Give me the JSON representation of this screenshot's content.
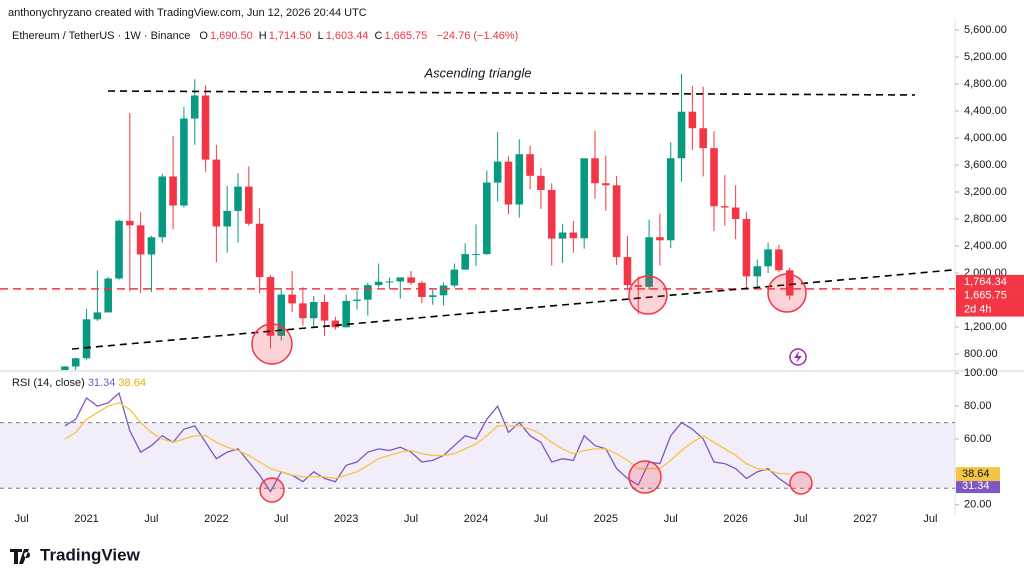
{
  "header": "anthonychryzano created with TradingView.com, Jun 12, 2026 20:44 UTC",
  "brand": "TradingView",
  "chart_data": {
    "type": "candlestick",
    "symbol": "Ethereum / TetherUS · 1W · Binance",
    "ohlc": [
      {
        "key": "O",
        "value": 1690.5,
        "label": "1,690.50"
      },
      {
        "key": "H",
        "value": 1714.5,
        "label": "1,714.50"
      },
      {
        "key": "L",
        "value": 1603.44,
        "label": "1,603.44"
      },
      {
        "key": "C",
        "value": 1665.75,
        "label": "1,665.75"
      }
    ],
    "change": "−24.76 (−1.46%)",
    "annotation": "Ascending triangle",
    "up_color": "#089981",
    "down_color": "#f23645",
    "x": [
      "2020-11",
      "2020-12",
      "2021-01",
      "2021-02",
      "2021-03",
      "2021-04",
      "2021-05",
      "2021-06",
      "2021-07",
      "2021-08",
      "2021-09",
      "2021-10",
      "2021-11",
      "2021-12",
      "2022-01",
      "2022-02",
      "2022-03",
      "2022-04",
      "2022-05",
      "2022-06",
      "2022-07",
      "2022-08",
      "2022-09",
      "2022-10",
      "2022-11",
      "2022-12",
      "2023-01",
      "2023-02",
      "2023-03",
      "2023-04",
      "2023-05",
      "2023-06",
      "2023-07",
      "2023-08",
      "2023-09",
      "2023-10",
      "2023-11",
      "2023-12",
      "2024-01",
      "2024-02",
      "2024-03",
      "2024-04",
      "2024-05",
      "2024-06",
      "2024-07",
      "2024-08",
      "2024-09",
      "2024-10",
      "2024-11",
      "2024-12",
      "2025-01",
      "2025-02",
      "2025-03",
      "2025-04",
      "2025-05",
      "2025-06",
      "2025-07",
      "2025-08",
      "2025-09",
      "2025-10",
      "2025-11",
      "2025-12",
      "2026-01",
      "2026-02",
      "2026-03",
      "2026-04",
      "2026-05",
      "2026-06"
    ],
    "open": [
      386,
      615,
      737,
      1314,
      1416,
      1918,
      2773,
      2706,
      2275,
      2530,
      3430,
      3000,
      4288,
      4630,
      3680,
      2690,
      2920,
      3280,
      2730,
      1940,
      1070,
      1680,
      1550,
      1330,
      1570,
      1295,
      1196,
      1585,
      1605,
      1820,
      1870,
      1875,
      1935,
      1855,
      1645,
      1670,
      1815,
      2050,
      2280,
      2280,
      3340,
      3650,
      3015,
      3760,
      3440,
      3230,
      2510,
      2600,
      2515,
      3700,
      3330,
      3300,
      2235,
      1820,
      1795,
      2530,
      2485,
      3700,
      4390,
      4145,
      3850,
      2990,
      2970,
      2800,
      1950,
      2100,
      2350,
      2040
    ],
    "high": [
      620,
      750,
      1470,
      2040,
      1940,
      2790,
      4370,
      2900,
      2550,
      3470,
      4030,
      4460,
      4870,
      4780,
      3900,
      3290,
      3480,
      3580,
      2960,
      1970,
      1780,
      2030,
      1790,
      1660,
      1680,
      1350,
      1680,
      1740,
      1860,
      2140,
      1930,
      1930,
      2030,
      1880,
      1750,
      1860,
      2140,
      2440,
      2720,
      3520,
      4090,
      3730,
      3980,
      3890,
      3560,
      3330,
      2730,
      2770,
      3680,
      4110,
      3740,
      3440,
      2550,
      1950,
      2790,
      2880,
      3940,
      4950,
      4770,
      4760,
      4100,
      3450,
      3300,
      2900,
      2200,
      2450,
      2420,
      2080
    ],
    "low": [
      370,
      535,
      715,
      1290,
      1450,
      1900,
      1730,
      1700,
      1720,
      2450,
      2650,
      2970,
      3900,
      3500,
      2160,
      2300,
      2450,
      2700,
      1700,
      880,
      1000,
      1420,
      1220,
      1190,
      1070,
      1160,
      1190,
      1460,
      1370,
      1785,
      1760,
      1620,
      1825,
      1550,
      1530,
      1520,
      1785,
      2050,
      2100,
      2270,
      3060,
      2870,
      2820,
      3240,
      2950,
      2110,
      2150,
      2300,
      2360,
      3100,
      2920,
      2120,
      1750,
      1390,
      1750,
      2110,
      2370,
      3350,
      3820,
      3430,
      2620,
      2700,
      2500,
      1750,
      1760,
      2000,
      2010,
      1603
    ],
    "close": [
      615,
      737,
      1314,
      1416,
      1918,
      2773,
      2706,
      2275,
      2530,
      3430,
      3000,
      4288,
      4630,
      3680,
      2690,
      2920,
      3280,
      2730,
      1940,
      1070,
      1680,
      1550,
      1330,
      1570,
      1295,
      1196,
      1585,
      1605,
      1820,
      1870,
      1875,
      1935,
      1855,
      1645,
      1670,
      1815,
      2050,
      2280,
      2280,
      3340,
      3650,
      3015,
      3760,
      3440,
      3230,
      2510,
      2600,
      2515,
      3700,
      3330,
      3300,
      2235,
      1820,
      1795,
      2530,
      2485,
      3700,
      4390,
      4145,
      3850,
      2990,
      2970,
      2800,
      1950,
      2100,
      2350,
      2040,
      1665.75
    ],
    "xlim": [
      "2020-05",
      "2027-09"
    ],
    "xticks": [
      {
        "value": "2020-07",
        "label": "Jul"
      },
      {
        "value": "2021-01",
        "label": "2021"
      },
      {
        "value": "2021-07",
        "label": "Jul"
      },
      {
        "value": "2022-01",
        "label": "2022"
      },
      {
        "value": "2022-07",
        "label": "Jul"
      },
      {
        "value": "2023-01",
        "label": "2023"
      },
      {
        "value": "2023-07",
        "label": "Jul"
      },
      {
        "value": "2024-01",
        "label": "2024"
      },
      {
        "value": "2024-07",
        "label": "Jul"
      },
      {
        "value": "2025-01",
        "label": "2025"
      },
      {
        "value": "2025-07",
        "label": "Jul"
      },
      {
        "value": "2026-01",
        "label": "2026"
      },
      {
        "value": "2026-07",
        "label": "Jul"
      },
      {
        "value": "2027-01",
        "label": "2027"
      },
      {
        "value": "2027-07",
        "label": "Jul"
      }
    ],
    "ylim": [
      563,
      5778
    ],
    "yticks": [
      {
        "value": 5600,
        "label": "5,600.00"
      },
      {
        "value": 5200,
        "label": "5,200.00"
      },
      {
        "value": 4800,
        "label": "4,800.00"
      },
      {
        "value": 4400,
        "label": "4,400.00"
      },
      {
        "value": 4000,
        "label": "4,000.00"
      },
      {
        "value": 3600,
        "label": "3,600.00"
      },
      {
        "value": 3200,
        "label": "3,200.00"
      },
      {
        "value": 2800,
        "label": "2,800.00"
      },
      {
        "value": 2400,
        "label": "2,400.00"
      },
      {
        "value": 2000,
        "label": "2,000.00"
      },
      {
        "value": 1200,
        "label": "1,200.00"
      },
      {
        "value": 800,
        "label": "800.00"
      }
    ],
    "price_labels": [
      {
        "value": 1764.34,
        "label": "1,764.34",
        "color": "#f23645"
      },
      {
        "value": 1665.75,
        "label": "1,665.75",
        "color": "#f23645"
      }
    ],
    "countdown": "2d 4h",
    "rsi": {
      "title": "RSI (14, close)",
      "ylim": [
        18,
        102
      ],
      "yticks": [
        {
          "value": 100,
          "label": "100.00"
        },
        {
          "value": 80,
          "label": "80.00"
        },
        {
          "value": 60,
          "label": "60.00"
        },
        {
          "value": 40,
          "label": "40.00"
        },
        {
          "value": 20,
          "label": "20.00"
        }
      ],
      "band": [
        30,
        70
      ],
      "series": [
        {
          "name": "RSI",
          "color": "#7e57c2",
          "values": [
            68,
            72,
            85,
            80,
            82,
            88,
            65,
            52,
            56,
            62,
            58,
            66,
            68,
            58,
            48,
            52,
            54,
            46,
            38,
            28,
            40,
            38,
            34,
            40,
            36,
            34,
            44,
            46,
            52,
            54,
            53,
            55,
            52,
            46,
            47,
            50,
            56,
            62,
            60,
            72,
            80,
            64,
            70,
            62,
            58,
            46,
            48,
            47,
            62,
            56,
            54,
            42,
            36,
            32,
            46,
            45,
            62,
            70,
            66,
            60,
            46,
            45,
            42,
            36,
            40,
            42,
            36,
            31.34
          ]
        },
        {
          "name": "MA",
          "color": "#f5c542",
          "values": [
            60,
            64,
            72,
            76,
            80,
            82,
            78,
            70,
            64,
            60,
            58,
            60,
            62,
            62,
            58,
            55,
            53,
            50,
            46,
            42,
            40,
            38,
            37,
            37,
            37,
            36,
            38,
            40,
            44,
            48,
            50,
            52,
            53,
            51,
            50,
            50,
            51,
            54,
            57,
            62,
            68,
            68,
            68,
            66,
            63,
            58,
            54,
            51,
            53,
            54,
            54,
            51,
            47,
            42,
            42,
            42,
            47,
            53,
            58,
            62,
            58,
            54,
            50,
            45,
            42,
            41,
            39,
            38.64
          ]
        }
      ]
    }
  }
}
